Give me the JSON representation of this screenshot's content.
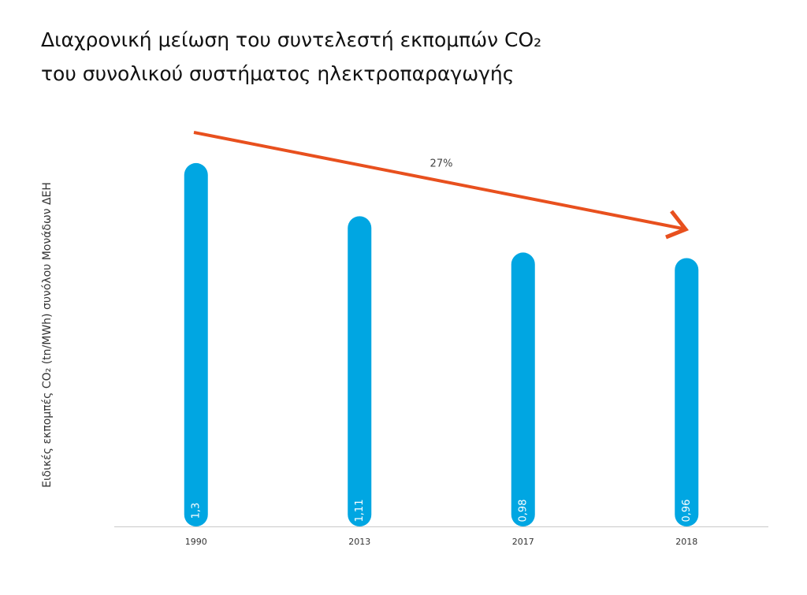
{
  "chart_data": {
    "type": "bar",
    "title": [
      "Διαχρονική μείωση του συντελεστή εκπομπών CO₂",
      "του συνολικού συστήματος ηλεκτροπαραγωγής"
    ],
    "y_label": "Ειδικές εκπομπές CO₂ (tn/MWh) συνόλου Μονάδων ΔΕΗ",
    "categories": [
      "1990",
      "2013",
      "2017",
      "2018"
    ],
    "values": [
      1.3,
      1.11,
      0.98,
      0.96
    ],
    "value_labels": [
      "1,3",
      "1,11",
      "0,98",
      "0,96"
    ],
    "color": "#00a6e2",
    "ylim": [
      0,
      1.5
    ],
    "annotation": "27%"
  }
}
